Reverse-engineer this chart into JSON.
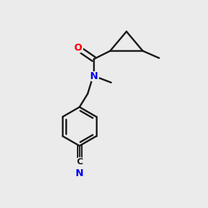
{
  "background_color": "#ebebeb",
  "bond_color": "#1a1a1a",
  "bond_width": 1.8,
  "atom_colors": {
    "O": "#ff0000",
    "N": "#0000ee",
    "C": "#1a1a1a"
  },
  "font_size": 10,
  "fig_size": [
    3.0,
    3.0
  ],
  "dpi": 100
}
